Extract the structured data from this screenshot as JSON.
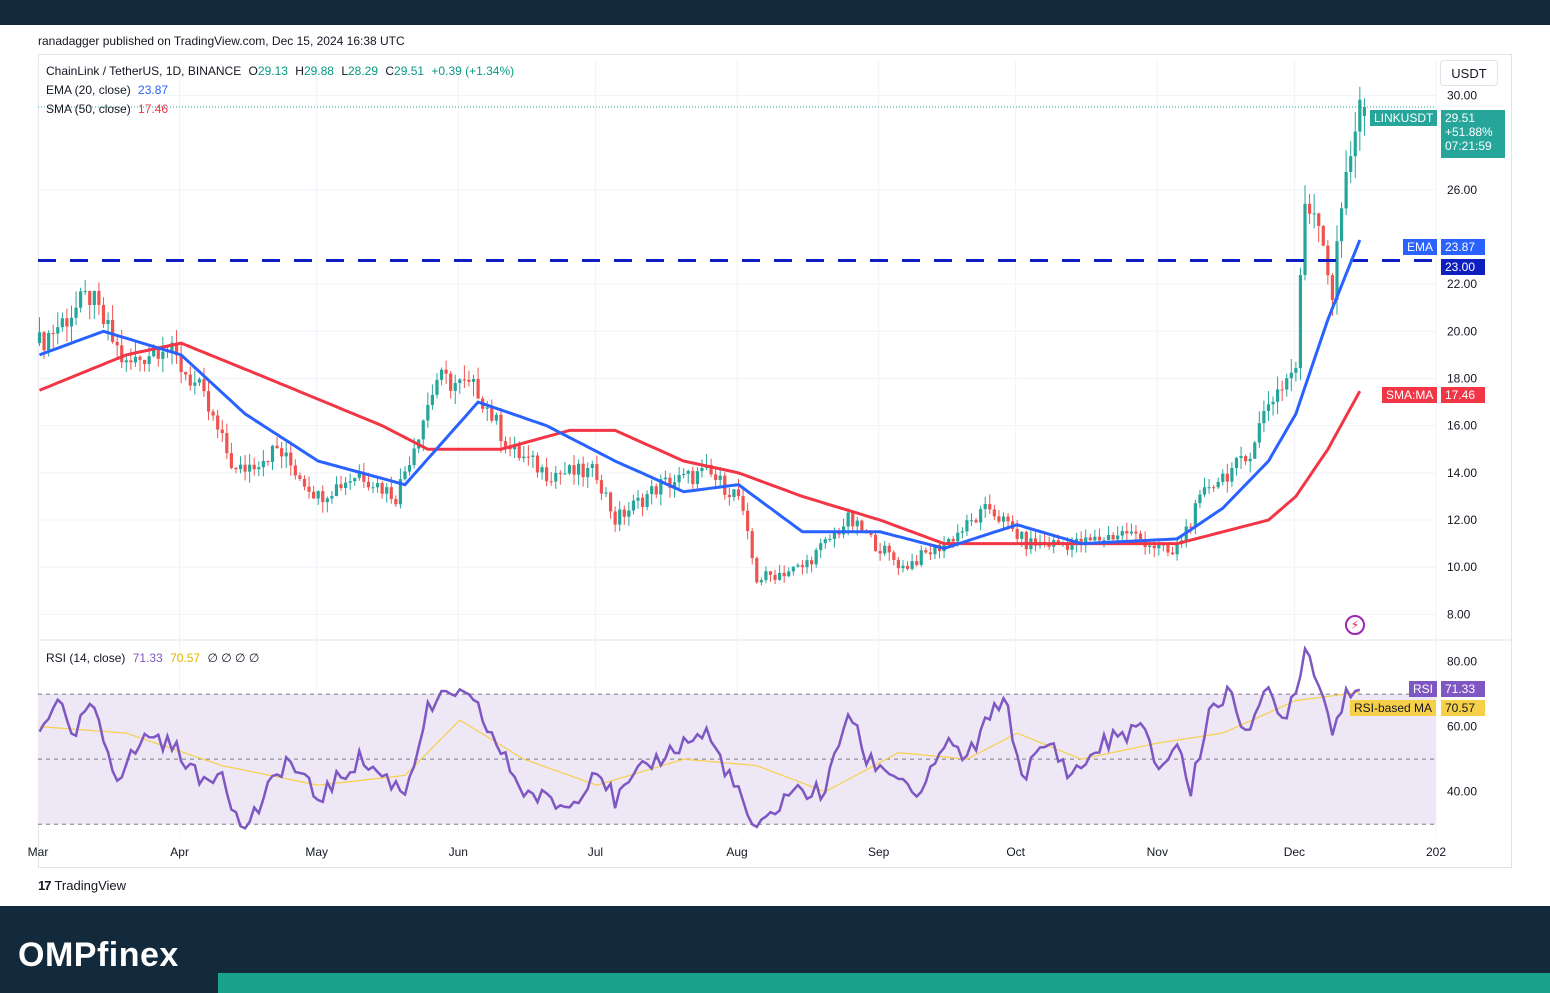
{
  "header": {
    "publisher_line": "ranadagger published on TradingView.com, Dec 15, 2024 16:38 UTC"
  },
  "legend": {
    "symbol": "ChainLink / TetherUS, 1D, BINANCE",
    "o_label": "O",
    "o_value": "29.13",
    "h_label": "H",
    "h_value": "29.88",
    "l_label": "L",
    "l_value": "28.29",
    "c_label": "C",
    "c_value": "29.51",
    "change": "+0.39 (+1.34%)",
    "ema_label": "EMA (20, close)",
    "ema_value": "23.87",
    "sma_label": "SMA (50, close)",
    "sma_value": "17.46",
    "rsi_label": "RSI (14, close)",
    "rsi_value": "71.33",
    "rsi_ma_value": "70.57",
    "rsi_extras": "∅ ∅ ∅ ∅"
  },
  "currency_button": "USDT",
  "price_tags": {
    "symbol_tag": "LINKUSDT",
    "last_price": "29.51",
    "change_pct": "+51.88%",
    "countdown": "07:21:59",
    "ema_tag": "EMA",
    "ema_value": "23.87",
    "level_value": "23.00",
    "sma_tag": "SMA:MA",
    "sma_value": "17.46",
    "rsi_tag": "RSI",
    "rsi_value": "71.33",
    "rsi_ma_tag": "RSI-based MA",
    "rsi_ma_value": "70.57"
  },
  "footer": {
    "logo_mark": "17",
    "brand": "TradingView"
  },
  "site_brand": "OMPfinex",
  "colors": {
    "up": "#26a69a",
    "down": "#ef5350",
    "ema": "#2962ff",
    "sma": "#f23645",
    "level": "#0d1fbf",
    "rsi": "#7e57c2",
    "rsi_ma": "#f7d04a",
    "rsi_band": "#ede7f6",
    "tag_green": "#26a69a"
  },
  "chart_data": [
    {
      "type": "candlestick",
      "title": "ChainLink / TetherUS, 1D, BINANCE",
      "ylim": [
        7,
        31.5
      ],
      "y_ticks": [
        "8.00",
        "10.00",
        "12.00",
        "14.00",
        "16.00",
        "18.00",
        "20.00",
        "22.00",
        "26.00",
        "30.00"
      ],
      "x_ticks": [
        "Mar",
        "Apr",
        "May",
        "Jun",
        "Jul",
        "Aug",
        "Sep",
        "Oct",
        "Nov",
        "Dec",
        "202"
      ],
      "ohlc_last": {
        "open": 29.13,
        "high": 29.88,
        "low": 28.29,
        "close": 29.51
      },
      "horizontal_level": 23.0,
      "close_anchors": [
        {
          "x": "Mar 1",
          "y": 19.5
        },
        {
          "x": "Mar 12",
          "y": 21.5
        },
        {
          "x": "Mar 20",
          "y": 18.5
        },
        {
          "x": "Mar 28",
          "y": 19.5
        },
        {
          "x": "Apr 5",
          "y": 17.5
        },
        {
          "x": "Apr 13",
          "y": 14.0
        },
        {
          "x": "Apr 22",
          "y": 15.0
        },
        {
          "x": "May 1",
          "y": 13.0
        },
        {
          "x": "May 10",
          "y": 14.0
        },
        {
          "x": "May 18",
          "y": 13.0
        },
        {
          "x": "May 27",
          "y": 18.0
        },
        {
          "x": "Jun 5",
          "y": 17.5
        },
        {
          "x": "Jun 12",
          "y": 15.0
        },
        {
          "x": "Jun 20",
          "y": 14.0
        },
        {
          "x": "Jul 1",
          "y": 14.0
        },
        {
          "x": "Jul 5",
          "y": 12.0
        },
        {
          "x": "Jul 15",
          "y": 13.5
        },
        {
          "x": "Jul 25",
          "y": 14.0
        },
        {
          "x": "Aug 1",
          "y": 13.0
        },
        {
          "x": "Aug 5",
          "y": 9.5
        },
        {
          "x": "Aug 15",
          "y": 10.0
        },
        {
          "x": "Aug 25",
          "y": 12.0
        },
        {
          "x": "Sep 6",
          "y": 10.0
        },
        {
          "x": "Sep 15",
          "y": 11.0
        },
        {
          "x": "Sep 25",
          "y": 12.5
        },
        {
          "x": "Oct 3",
          "y": 11.0
        },
        {
          "x": "Oct 15",
          "y": 11.0
        },
        {
          "x": "Oct 25",
          "y": 11.5
        },
        {
          "x": "Nov 4",
          "y": 10.5
        },
        {
          "x": "Nov 12",
          "y": 13.5
        },
        {
          "x": "Nov 20",
          "y": 14.5
        },
        {
          "x": "Nov 25",
          "y": 17.0
        },
        {
          "x": "Dec 1",
          "y": 18.5
        },
        {
          "x": "Dec 3",
          "y": 25.5
        },
        {
          "x": "Dec 6",
          "y": 25.0
        },
        {
          "x": "Dec 9",
          "y": 21.5
        },
        {
          "x": "Dec 12",
          "y": 27.0
        },
        {
          "x": "Dec 15",
          "y": 29.51
        }
      ],
      "series": [
        {
          "name": "EMA (20, close)",
          "last": 23.87,
          "anchors": [
            {
              "x": "Mar 1",
              "y": 19.0
            },
            {
              "x": "Mar 15",
              "y": 20.0
            },
            {
              "x": "Apr 1",
              "y": 19.0
            },
            {
              "x": "Apr 15",
              "y": 16.5
            },
            {
              "x": "May 1",
              "y": 14.5
            },
            {
              "x": "May 20",
              "y": 13.5
            },
            {
              "x": "Jun 5",
              "y": 17.0
            },
            {
              "x": "Jun 20",
              "y": 16.0
            },
            {
              "x": "Jul 5",
              "y": 14.5
            },
            {
              "x": "Jul 20",
              "y": 13.2
            },
            {
              "x": "Aug 1",
              "y": 13.5
            },
            {
              "x": "Aug 15",
              "y": 11.5
            },
            {
              "x": "Sep 1",
              "y": 11.5
            },
            {
              "x": "Sep 15",
              "y": 10.8
            },
            {
              "x": "Oct 1",
              "y": 11.8
            },
            {
              "x": "Oct 15",
              "y": 11.0
            },
            {
              "x": "Nov 5",
              "y": 11.2
            },
            {
              "x": "Nov 15",
              "y": 12.5
            },
            {
              "x": "Nov 25",
              "y": 14.5
            },
            {
              "x": "Dec 1",
              "y": 16.5
            },
            {
              "x": "Dec 8",
              "y": 20.5
            },
            {
              "x": "Dec 15",
              "y": 23.87
            }
          ]
        },
        {
          "name": "SMA (50, close)",
          "last": 17.46,
          "anchors": [
            {
              "x": "Mar 1",
              "y": 17.5
            },
            {
              "x": "Mar 20",
              "y": 19.0
            },
            {
              "x": "Apr 1",
              "y": 19.5
            },
            {
              "x": "Apr 20",
              "y": 18.0
            },
            {
              "x": "May 15",
              "y": 16.0
            },
            {
              "x": "May 25",
              "y": 15.0
            },
            {
              "x": "Jun 10",
              "y": 15.0
            },
            {
              "x": "Jun 25",
              "y": 15.8
            },
            {
              "x": "Jul 5",
              "y": 15.8
            },
            {
              "x": "Jul 20",
              "y": 14.5
            },
            {
              "x": "Aug 1",
              "y": 14.0
            },
            {
              "x": "Aug 15",
              "y": 13.0
            },
            {
              "x": "Sep 1",
              "y": 12.0
            },
            {
              "x": "Sep 15",
              "y": 11.0
            },
            {
              "x": "Oct 1",
              "y": 11.0
            },
            {
              "x": "Nov 5",
              "y": 11.0
            },
            {
              "x": "Nov 15",
              "y": 11.5
            },
            {
              "x": "Nov 25",
              "y": 12.0
            },
            {
              "x": "Dec 1",
              "y": 13.0
            },
            {
              "x": "Dec 8",
              "y": 15.0
            },
            {
              "x": "Dec 15",
              "y": 17.46
            }
          ]
        }
      ]
    },
    {
      "type": "line",
      "title": "RSI (14, close)",
      "ylim": [
        27,
        86
      ],
      "y_ticks": [
        "40.00",
        "60.00",
        "80.00"
      ],
      "bands": [
        30,
        50,
        70
      ],
      "series": [
        {
          "name": "RSI",
          "last": 71.33,
          "anchors": [
            {
              "x": "Mar 1",
              "y": 58
            },
            {
              "x": "Mar 5",
              "y": 70
            },
            {
              "x": "Mar 8",
              "y": 55
            },
            {
              "x": "Mar 12",
              "y": 67
            },
            {
              "x": "Mar 18",
              "y": 45
            },
            {
              "x": "Mar 25",
              "y": 58
            },
            {
              "x": "Apr 1",
              "y": 52
            },
            {
              "x": "Apr 5",
              "y": 43
            },
            {
              "x": "Apr 10",
              "y": 47
            },
            {
              "x": "Apr 14",
              "y": 28
            },
            {
              "x": "Apr 18",
              "y": 35
            },
            {
              "x": "Apr 24",
              "y": 50
            },
            {
              "x": "May 1",
              "y": 38
            },
            {
              "x": "May 10",
              "y": 50
            },
            {
              "x": "May 20",
              "y": 40
            },
            {
              "x": "May 25",
              "y": 65
            },
            {
              "x": "May 31",
              "y": 71
            },
            {
              "x": "Jun 5",
              "y": 65
            },
            {
              "x": "Jun 10",
              "y": 52
            },
            {
              "x": "Jun 15",
              "y": 40
            },
            {
              "x": "Jun 25",
              "y": 35
            },
            {
              "x": "Jul 1",
              "y": 48
            },
            {
              "x": "Jul 5",
              "y": 37
            },
            {
              "x": "Jul 12",
              "y": 48
            },
            {
              "x": "Jul 20",
              "y": 55
            },
            {
              "x": "Jul 25",
              "y": 58
            },
            {
              "x": "Jul 30",
              "y": 45
            },
            {
              "x": "Aug 5",
              "y": 27
            },
            {
              "x": "Aug 12",
              "y": 40
            },
            {
              "x": "Aug 20",
              "y": 40
            },
            {
              "x": "Aug 25",
              "y": 65
            },
            {
              "x": "Aug 29",
              "y": 50
            },
            {
              "x": "Sep 5",
              "y": 45
            },
            {
              "x": "Sep 10",
              "y": 38
            },
            {
              "x": "Sep 15",
              "y": 55
            },
            {
              "x": "Sep 20",
              "y": 50
            },
            {
              "x": "Sep 28",
              "y": 70
            },
            {
              "x": "Oct 2",
              "y": 45
            },
            {
              "x": "Oct 8",
              "y": 55
            },
            {
              "x": "Oct 13",
              "y": 45
            },
            {
              "x": "Oct 20",
              "y": 55
            },
            {
              "x": "Oct 28",
              "y": 60
            },
            {
              "x": "Nov 1",
              "y": 47
            },
            {
              "x": "Nov 5",
              "y": 55
            },
            {
              "x": "Nov 8",
              "y": 40
            },
            {
              "x": "Nov 12",
              "y": 65
            },
            {
              "x": "Nov 16",
              "y": 70
            },
            {
              "x": "Nov 20",
              "y": 60
            },
            {
              "x": "Nov 25",
              "y": 70
            },
            {
              "x": "Nov 28",
              "y": 62
            },
            {
              "x": "Dec 1",
              "y": 72
            },
            {
              "x": "Dec 3",
              "y": 84
            },
            {
              "x": "Dec 6",
              "y": 75
            },
            {
              "x": "Dec 9",
              "y": 58
            },
            {
              "x": "Dec 12",
              "y": 72
            },
            {
              "x": "Dec 15",
              "y": 71.33
            }
          ]
        },
        {
          "name": "RSI-based MA",
          "last": 70.57,
          "anchors": [
            {
              "x": "Mar 1",
              "y": 60
            },
            {
              "x": "Mar 20",
              "y": 58
            },
            {
              "x": "Apr 10",
              "y": 48
            },
            {
              "x": "May 1",
              "y": 42
            },
            {
              "x": "May 20",
              "y": 45
            },
            {
              "x": "Jun 1",
              "y": 62
            },
            {
              "x": "Jun 15",
              "y": 50
            },
            {
              "x": "Jul 1",
              "y": 42
            },
            {
              "x": "Jul 20",
              "y": 50
            },
            {
              "x": "Aug 5",
              "y": 48
            },
            {
              "x": "Aug 20",
              "y": 40
            },
            {
              "x": "Sep 5",
              "y": 52
            },
            {
              "x": "Sep 20",
              "y": 50
            },
            {
              "x": "Oct 1",
              "y": 58
            },
            {
              "x": "Oct 15",
              "y": 50
            },
            {
              "x": "Nov 1",
              "y": 55
            },
            {
              "x": "Nov 15",
              "y": 58
            },
            {
              "x": "Dec 1",
              "y": 68
            },
            {
              "x": "Dec 15",
              "y": 70.57
            }
          ]
        }
      ]
    }
  ]
}
